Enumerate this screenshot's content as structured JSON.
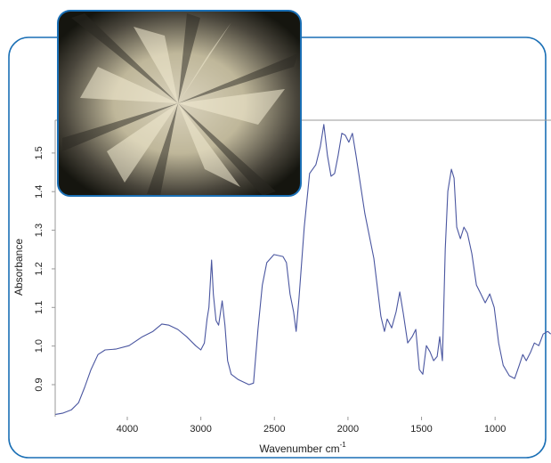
{
  "chart_data": {
    "type": "line",
    "xlabel": "Wavenumber cm",
    "xlabel_superscript": "-1",
    "ylabel": "Absorbance",
    "color": "#4a56a0",
    "x_break": 3000,
    "xlim": [
      4980,
      620
    ],
    "xticks": [
      4000,
      3000,
      2500,
      2000,
      1500,
      1000
    ],
    "ylim": [
      0.817,
      1.585
    ],
    "yticks": [
      0.9,
      {
        "value": 1,
        "label": "1.0"
      },
      1.1,
      1.2,
      1.3,
      1.4,
      1.5
    ],
    "x": [
      4976,
      4880,
      4759,
      4663,
      4579,
      4494,
      4398,
      4301,
      4157,
      3976,
      3795,
      3651,
      3530,
      3434,
      3313,
      3193,
      3072,
      3000,
      2976,
      2958,
      2945,
      2927,
      2915,
      2897,
      2879,
      2855,
      2836,
      2818,
      2794,
      2745,
      2673,
      2642,
      2612,
      2582,
      2552,
      2503,
      2442,
      2418,
      2394,
      2370,
      2352,
      2333,
      2297,
      2261,
      2218,
      2188,
      2164,
      2139,
      2115,
      2091,
      2067,
      2042,
      2018,
      1994,
      1970,
      1945,
      1885,
      1824,
      1776,
      1752,
      1733,
      1703,
      1673,
      1648,
      1624,
      1594,
      1564,
      1539,
      1515,
      1491,
      1467,
      1442,
      1418,
      1394,
      1376,
      1358,
      1339,
      1321,
      1297,
      1279,
      1261,
      1236,
      1212,
      1188,
      1158,
      1127,
      1097,
      1067,
      1036,
      1006,
      976,
      945,
      903,
      867,
      836,
      812,
      788,
      758,
      733,
      703,
      673,
      642,
      622
    ],
    "values": [
      0.823,
      0.826,
      0.835,
      0.853,
      0.893,
      0.939,
      0.978,
      0.99,
      0.992,
      1.001,
      1.024,
      1.038,
      1.057,
      1.054,
      1.043,
      1.024,
      1.001,
      0.99,
      1.008,
      1.07,
      1.1,
      1.223,
      1.134,
      1.066,
      1.054,
      1.117,
      1.054,
      0.962,
      0.927,
      0.913,
      0.9,
      0.904,
      1.043,
      1.158,
      1.216,
      1.237,
      1.232,
      1.216,
      1.135,
      1.089,
      1.038,
      1.124,
      1.308,
      1.447,
      1.47,
      1.516,
      1.574,
      1.493,
      1.44,
      1.447,
      1.493,
      1.551,
      1.546,
      1.528,
      1.551,
      1.493,
      1.343,
      1.227,
      1.077,
      1.038,
      1.07,
      1.047,
      1.089,
      1.14,
      1.084,
      1.008,
      1.024,
      1.043,
      0.939,
      0.927,
      1.001,
      0.985,
      0.962,
      0.973,
      1.024,
      0.962,
      1.251,
      1.401,
      1.458,
      1.435,
      1.308,
      1.278,
      1.308,
      1.292,
      1.239,
      1.158,
      1.135,
      1.112,
      1.135,
      1.1,
      1.008,
      0.95,
      0.923,
      0.916,
      0.95,
      0.978,
      0.962,
      0.985,
      1.008,
      1.001,
      1.031,
      1.038,
      1.031
    ]
  }
}
